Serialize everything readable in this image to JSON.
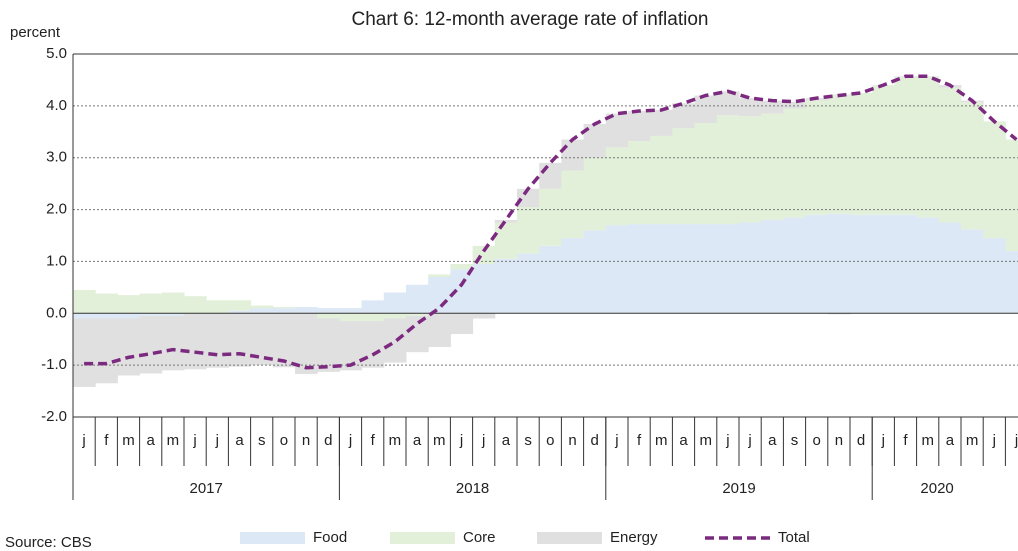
{
  "chart_data": {
    "type": "stacked_area_line",
    "title": "Chart 6: 12-month average rate of inflation",
    "y_label": "percent",
    "source": "Source: CBS",
    "categories": [
      "j",
      "f",
      "m",
      "a",
      "m",
      "j",
      "j",
      "a",
      "s",
      "o",
      "n",
      "d",
      "j",
      "f",
      "m",
      "a",
      "m",
      "j",
      "j",
      "a",
      "s",
      "o",
      "n",
      "d",
      "j",
      "f",
      "m",
      "a",
      "m",
      "j",
      "j",
      "a",
      "s",
      "o",
      "n",
      "d",
      "j",
      "f",
      "m",
      "a",
      "m",
      "j",
      "j"
    ],
    "year_groups": [
      "2017",
      "2018",
      "2019",
      "2020"
    ],
    "series": [
      {
        "name": "Food",
        "color": "#dce8f5",
        "values": [
          -0.1,
          -0.1,
          -0.1,
          -0.05,
          -0.05,
          0,
          0,
          0.05,
          0.1,
          0.1,
          0.12,
          0.1,
          0.1,
          0.25,
          0.4,
          0.55,
          0.7,
          0.85,
          0.95,
          1.05,
          1.15,
          1.3,
          1.45,
          1.6,
          1.7,
          1.72,
          1.72,
          1.72,
          1.72,
          1.72,
          1.75,
          1.8,
          1.85,
          1.9,
          1.92,
          1.9,
          1.9,
          1.9,
          1.85,
          1.75,
          1.62,
          1.45,
          1.2
        ]
      },
      {
        "name": "Core",
        "color": "#e2f0d9",
        "values": [
          0.45,
          0.38,
          0.35,
          0.38,
          0.4,
          0.33,
          0.25,
          0.2,
          0.05,
          0.02,
          0,
          -0.1,
          -0.15,
          -0.15,
          -0.1,
          -0.05,
          0.05,
          0.1,
          0.35,
          0.7,
          0.9,
          1.1,
          1.3,
          1.4,
          1.5,
          1.6,
          1.7,
          1.85,
          1.95,
          2.1,
          2.05,
          2.05,
          2.1,
          2.2,
          2.3,
          2.35,
          2.5,
          2.65,
          2.72,
          2.6,
          2.45,
          2.25,
          2.15
        ]
      },
      {
        "name": "Energy",
        "color": "#e0e0e0",
        "values": [
          -1.32,
          -1.25,
          -1.1,
          -1.11,
          -1.05,
          -1.08,
          -1.05,
          -1.03,
          -1.0,
          -1.04,
          -1.17,
          -1.03,
          -0.95,
          -0.9,
          -0.85,
          -0.7,
          -0.65,
          -0.4,
          -0.1,
          0.05,
          0.35,
          0.5,
          0.6,
          0.65,
          0.65,
          0.58,
          0.5,
          0.48,
          0.53,
          0.46,
          0.35,
          0.25,
          0.13,
          0.05,
          -0.02,
          0,
          0,
          0.02,
          0,
          0.05,
          0.03,
          0,
          0
        ]
      },
      {
        "name": "Total",
        "color": "#7b2a7f",
        "line": true,
        "values": [
          -0.97,
          -0.97,
          -0.85,
          -0.78,
          -0.7,
          -0.75,
          -0.8,
          -0.78,
          -0.85,
          -0.92,
          -1.05,
          -1.03,
          -1.0,
          -0.8,
          -0.55,
          -0.2,
          0.1,
          0.55,
          1.2,
          1.8,
          2.4,
          2.9,
          3.35,
          3.65,
          3.85,
          3.9,
          3.92,
          4.05,
          4.2,
          4.28,
          4.15,
          4.1,
          4.08,
          4.15,
          4.2,
          4.25,
          4.4,
          4.57,
          4.57,
          4.4,
          4.1,
          3.7,
          3.35
        ]
      }
    ],
    "ylim": [
      -2,
      5
    ],
    "yticks": [
      {
        "value": -2,
        "label": "-2.0"
      },
      {
        "value": -1,
        "label": "-1.0"
      },
      {
        "value": 0,
        "label": "0.0"
      },
      {
        "value": 1,
        "label": "1.0"
      },
      {
        "value": 2,
        "label": "2.0"
      },
      {
        "value": 3,
        "label": "3.0"
      },
      {
        "value": 4,
        "label": "4.0"
      },
      {
        "value": 5,
        "label": "5.0"
      }
    ],
    "grid": true
  }
}
